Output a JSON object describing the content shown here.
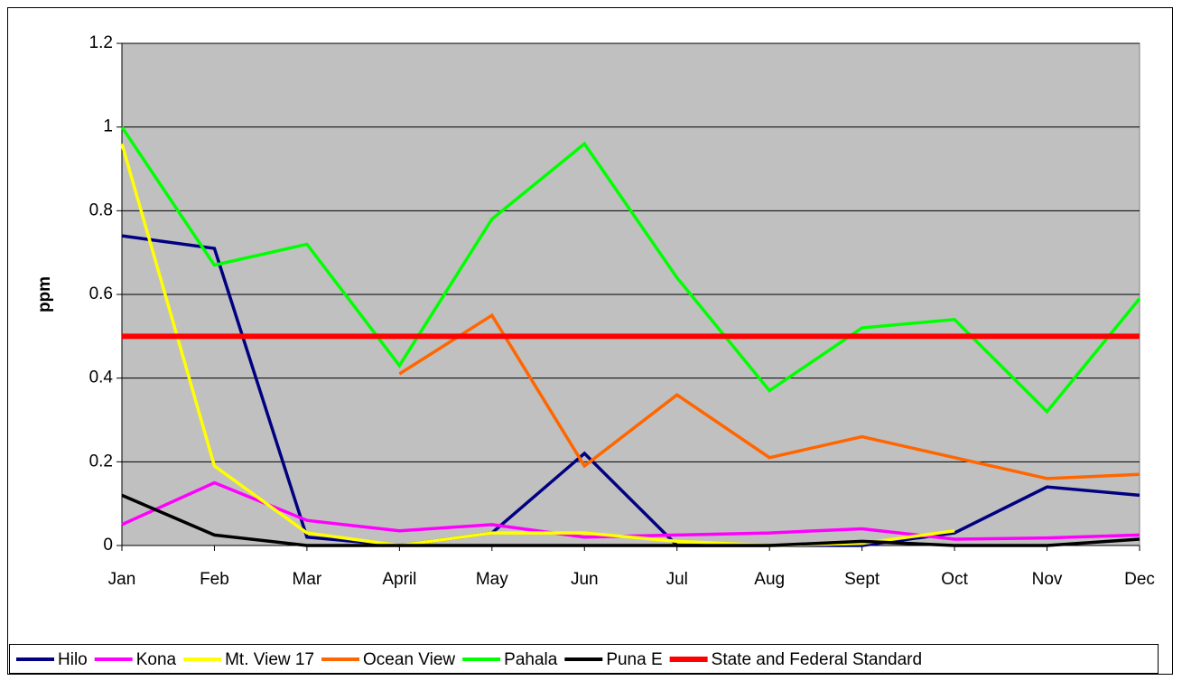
{
  "chart_data": {
    "type": "line",
    "y_label": "ppm",
    "categories": [
      "Jan",
      "Feb",
      "Mar",
      "April",
      "May",
      "Jun",
      "Jul",
      "Aug",
      "Sept",
      "Oct",
      "Nov",
      "Dec"
    ],
    "ylim": [
      0,
      1.2
    ],
    "yticks": [
      0,
      0.2,
      0.4,
      0.6,
      0.8,
      1,
      1.2
    ],
    "grid": true,
    "legend": "bottom",
    "series": [
      {
        "name": "Hilo",
        "color": "#000080",
        "values": [
          0.74,
          0.71,
          0.02,
          0.0,
          0.03,
          0.22,
          0.0,
          0.0,
          0.0,
          0.03,
          0.14,
          0.12
        ]
      },
      {
        "name": "Kona",
        "color": "#ff00ff",
        "values": [
          0.05,
          0.15,
          0.06,
          0.035,
          0.05,
          0.02,
          0.025,
          0.03,
          0.04,
          0.015,
          0.018,
          0.025
        ]
      },
      {
        "name": "Mt. View 17",
        "color": "#ffff00",
        "values": [
          0.96,
          0.19,
          0.03,
          0.0,
          0.03,
          0.03,
          0.01,
          0.0,
          0.005,
          0.035,
          null,
          null
        ]
      },
      {
        "name": "Ocean View",
        "color": "#ff6600",
        "values": [
          null,
          null,
          null,
          0.41,
          0.55,
          0.19,
          0.36,
          0.21,
          0.26,
          0.21,
          0.16,
          0.17
        ]
      },
      {
        "name": "Pahala",
        "color": "#00ff00",
        "values": [
          1.0,
          0.67,
          0.72,
          0.43,
          0.78,
          0.96,
          0.64,
          0.37,
          0.52,
          0.54,
          0.32,
          0.59
        ]
      },
      {
        "name": "Puna E",
        "color": "#000000",
        "values": [
          0.12,
          0.025,
          0.0,
          0.0,
          0.0,
          0.0,
          0.0,
          0.0,
          0.01,
          0.0,
          0.0,
          0.015
        ]
      },
      {
        "name": "State and Federal Standard",
        "color": "#ff0000",
        "values": [
          0.5,
          0.5,
          0.5,
          0.5,
          0.5,
          0.5,
          0.5,
          0.5,
          0.5,
          0.5,
          0.5,
          0.5
        ]
      }
    ]
  }
}
